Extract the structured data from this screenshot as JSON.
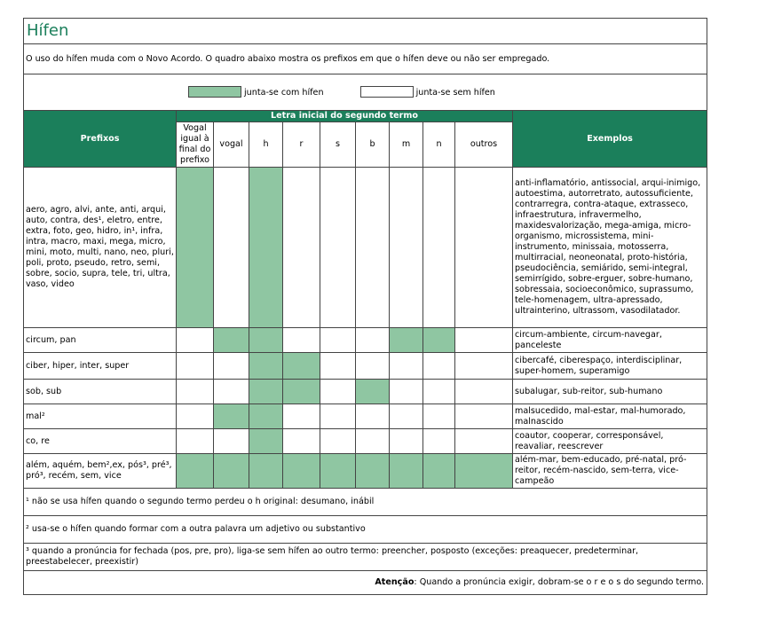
{
  "title": "Hífen",
  "intro": "O uso do hífen muda com o Novo Acordo. O quadro abaixo mostra os prefixos em que o hífen deve ou não ser empregado.",
  "legend": {
    "joined": "junta-se com hífen",
    "separate": "junta-se sem hífen"
  },
  "table": {
    "header_prefixes": "Prefixos",
    "header_group": "Letra inicial do segundo termo",
    "header_examples": "Exemplos",
    "columns": [
      "Vogal igual à final do prefixo",
      "vogal",
      "h",
      "r",
      "s",
      "b",
      "m",
      "n",
      "outros"
    ],
    "rows": [
      {
        "prefixes": "aero, agro, alvi, ante, anti, arqui, auto, contra, des¹, eletro, entre, extra, foto, geo, hidro, in¹, infra, intra, macro, maxi, mega, micro, mini, moto, multi, nano, neo, pluri, poli, proto, pseudo, retro, semi, sobre, socio, supra, tele, tri, ultra, vaso, video",
        "cells": [
          true,
          false,
          true,
          false,
          false,
          false,
          false,
          false,
          false
        ],
        "examples": "anti-inflamatório, antissocial, arqui-inimigo, autoestima, autorretrato, autossuficiente, contrarregra, contra-ataque, extrasseco, infraestrutura, infravermelho, maxidesvalorização, mega-amiga, micro-organismo, microssistema, mini-instrumento, minissaia, motosserra, multirracial, neoneonatal, proto-história, pseudociência, semiárido, semi-integral, semirrígido, sobre-erguer, sobre-humano, sobressaia, socioeconômico, suprassumo, tele-homenagem, ultra-apressado, ultrainterino, ultrassom, vasodilatador."
      },
      {
        "prefixes": "circum, pan",
        "cells": [
          false,
          true,
          true,
          false,
          false,
          false,
          true,
          true,
          false
        ],
        "examples": "circum-ambiente, circum-navegar, panceleste"
      },
      {
        "prefixes": "ciber, hiper, inter, super",
        "cells": [
          false,
          false,
          true,
          true,
          false,
          false,
          false,
          false,
          false
        ],
        "examples": "cibercafé, ciberespaço, interdisciplinar, super-homem, superamigo"
      },
      {
        "prefixes": "sob, sub",
        "cells": [
          false,
          false,
          true,
          true,
          false,
          true,
          false,
          false,
          false
        ],
        "examples": "subalugar, sub-reitor, sub-humano"
      },
      {
        "prefixes": "mal²",
        "cells": [
          false,
          true,
          true,
          false,
          false,
          false,
          false,
          false,
          false
        ],
        "examples": "malsucedido, mal-estar, mal-humorado, malnascido"
      },
      {
        "prefixes": "co, re",
        "cells": [
          false,
          false,
          true,
          false,
          false,
          false,
          false,
          false,
          false
        ],
        "examples": "coautor, cooperar, corresponsável, reavaliar, reescrever"
      },
      {
        "prefixes": "além, aquém, bem²,ex, pós³, pré³, pró³, recém, sem, vice",
        "cells": [
          true,
          true,
          true,
          true,
          true,
          true,
          true,
          true,
          true
        ],
        "examples": "além-mar, bem-educado, pré-natal, pró-reitor, recém-nascido, sem-terra, vice-campeão"
      }
    ]
  },
  "notes": [
    "¹ não se usa hífen quando o segundo termo perdeu o h original: desumano, inábil",
    "² usa-se o hífen quando formar com a outra palavra um adjetivo ou substantivo",
    "³ quando a pronúncia for fechada (pos, pre, pro), liga-se sem hífen ao outro termo: preencher, posposto (exceções: preaquecer, predeterminar, preestabelecer, preexistir)"
  ],
  "attention": {
    "label": "Atenção",
    "text": ": Quando a pronúncia exigir, dobram-se o r e o s do segundo termo."
  }
}
